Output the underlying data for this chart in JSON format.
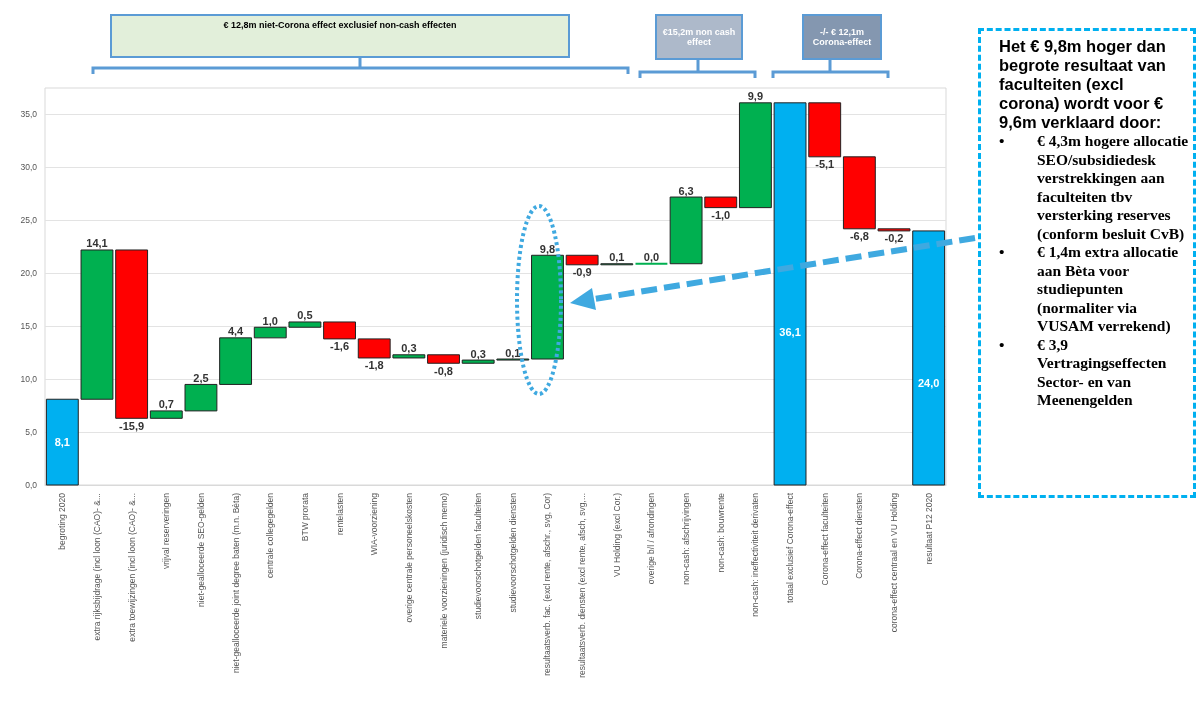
{
  "chart_data": {
    "type": "bar",
    "categories": [
      "begroting 2020",
      "extra rijksbijdrage (incl loon (CAO)- &...",
      "extra toewijzingen (incl loon (CAO)- &...",
      "vrijval reserveringen",
      "niet-gealloceerde SEO-gelden",
      "niet-gealloceerde joint degree baten (m.n. Bèta)",
      "centrale collegegelden",
      "BTW prorata",
      "rentelasten",
      "WIA-voorziening",
      "overige centrale personeelskosten",
      "materiele voorzieningen (juridisch memo)",
      "studievoorschotgelden faculteiten",
      "studievoorschotgelden diensten",
      "resultaatsverb. fac. (excl rente, afschr., svg, Cor)",
      "resultaatsverb. diensten (excl rente, afsch, svg,...",
      "VU Holding (excl Cor.)",
      "overige b/l / afrondingen",
      "non-cash: afschrijvingen",
      "non-cash: bouwrente",
      "non-cash: ineffectiviteit derivaten",
      "totaal exclusief Corona-effect",
      "Corona-effect faculteiten",
      "Corona-effect diensten",
      "corona-effect centraal en VU Holding",
      "resultaat P12 2020"
    ],
    "values": [
      8.1,
      14.1,
      -15.9,
      0.7,
      2.5,
      4.4,
      1.0,
      0.5,
      -1.6,
      -1.8,
      0.3,
      -0.8,
      0.3,
      0.1,
      9.8,
      -0.9,
      0.1,
      0.0,
      6.3,
      -1.0,
      9.9,
      36.1,
      -5.1,
      -6.8,
      -0.2,
      24.0
    ],
    "base": [
      0,
      8.1,
      22.2,
      6.3,
      7.0,
      9.5,
      13.9,
      14.9,
      15.4,
      13.8,
      12.0,
      12.3,
      11.5,
      11.8,
      11.9,
      21.7,
      20.8,
      20.9,
      20.9,
      27.2,
      26.2,
      0,
      36.1,
      31.0,
      24.2,
      0
    ],
    "colors": [
      "#00b0f0",
      "#00b050",
      "#ff0000",
      "#00b050",
      "#00b050",
      "#00b050",
      "#00b050",
      "#00b050",
      "#ff0000",
      "#ff0000",
      "#00b050",
      "#ff0000",
      "#00b050",
      "#00b050",
      "#00b050",
      "#ff0000",
      "#00b050",
      "#00b050",
      "#00b050",
      "#ff0000",
      "#00b050",
      "#00b0f0",
      "#ff0000",
      "#ff0000",
      "#ff0000",
      "#00b0f0"
    ],
    "value_labels": [
      "8,1",
      "14,1",
      "-15,9",
      "0,7",
      "2,5",
      "4,4",
      "1,0",
      "0,5",
      "-1,6",
      "-1,8",
      "0,3",
      "-0,8",
      "0,3",
      "0,1",
      "9,8",
      "-0,9",
      "0,1",
      "0,0",
      "6,3",
      "-1,0",
      "9,9",
      "36,1",
      "-5,1",
      "-6,8",
      "-0,2",
      "24,0"
    ],
    "ylim": [
      0,
      37.5
    ],
    "yticks": [
      {
        "value": 0,
        "label": "0,0"
      },
      {
        "value": 5,
        "label": "5,0"
      },
      {
        "value": 10,
        "label": "10,0"
      },
      {
        "value": 15,
        "label": "15,0"
      },
      {
        "value": 20,
        "label": "20,0"
      },
      {
        "value": 25,
        "label": "25,0"
      },
      {
        "value": 30,
        "label": "30,0"
      },
      {
        "value": 35,
        "label": "35,0"
      }
    ],
    "grid": "y",
    "annotations": [
      "€ 12,8m niet-Corona effect exclusief non-cash effecten",
      "€15,2m non cash effect",
      "-/- € 12,1m Corona-effect",
      "Het € 9,8m hoger dan begrote resultaat van faculteiten (excl corona) wordt voor € 9,6m verklaard door:",
      "• € 4,3m hogere allocatie SEO/subsidiedesk verstrekkingen aan faculteiten tbv versterking reserves (conform besluit CvB)",
      "• € 1,4m extra allocatie aan Bèta voor studiepunten (normaliter via VUSAM verrekend)",
      "• € 3,9 Vertragingseffecten Sector- en van Meenengelden"
    ]
  }
}
